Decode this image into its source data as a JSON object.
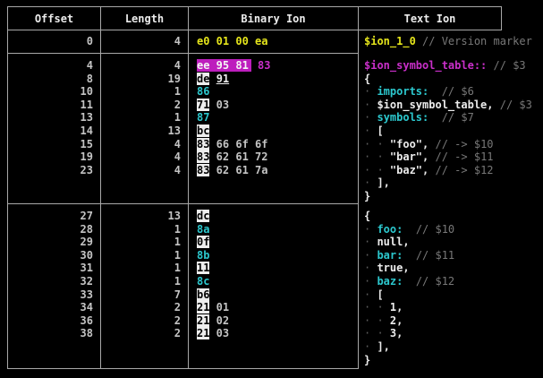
{
  "columns": [
    "Offset",
    "Length",
    "Binary Ion",
    "Text Ion"
  ],
  "colors": {
    "background": "#000000",
    "border": "#a8a8a8",
    "white": "#ececec",
    "number_gray": "#c4c4c4",
    "yellow": "#e5e51b",
    "magenta": "#c92fc9",
    "magenta_highlight_bg": "#bd1ebd",
    "cyan": "#2cc8ce",
    "comment_gray": "#787878",
    "indent_dot_gray": "#5e5e5e",
    "inverted_byte_bg": "#ededed"
  },
  "sections": [
    {
      "rows": [
        {
          "offset": "0",
          "length": "4",
          "binary": [
            {
              "t": "e0 01 00 ea",
              "c": "yellow"
            }
          ],
          "text": [
            {
              "t": "$ion_1_0",
              "c": "yellow"
            },
            {
              "t": " ",
              "c": "plain"
            },
            {
              "t": "// Version marker",
              "c": "comment"
            }
          ]
        }
      ]
    },
    {
      "rows": [
        {
          "offset": "4",
          "length": "4",
          "binary": [
            {
              "t": "ee 95 81",
              "c": "magentaBg"
            },
            {
              "t": " ",
              "c": "plain"
            },
            {
              "t": "83",
              "c": "magenta"
            }
          ],
          "text": [
            {
              "t": "$ion_symbol_table::",
              "c": "magenta"
            },
            {
              "t": " ",
              "c": "plain"
            },
            {
              "t": "// $3",
              "c": "comment"
            }
          ]
        },
        {
          "offset": "8",
          "length": "19",
          "binary": [
            {
              "t": "de",
              "c": "invert"
            },
            {
              "t": " ",
              "c": "plain"
            },
            {
              "t": "91",
              "c": "whiteU"
            }
          ],
          "text": [
            {
              "t": "{",
              "c": "white"
            }
          ]
        },
        {
          "offset": "10",
          "length": "1",
          "binary": [
            {
              "t": "86",
              "c": "cyan"
            }
          ],
          "text": [
            {
              "t": "· ",
              "c": "dot"
            },
            {
              "t": "imports:",
              "c": "cyan"
            },
            {
              "t": "  ",
              "c": "plain"
            },
            {
              "t": "// $6",
              "c": "comment"
            }
          ]
        },
        {
          "offset": "11",
          "length": "2",
          "binary": [
            {
              "t": "71",
              "c": "invert"
            },
            {
              "t": " 03",
              "c": "gray"
            }
          ],
          "text": [
            {
              "t": "· ",
              "c": "dot"
            },
            {
              "t": "$ion_symbol_table,",
              "c": "white"
            },
            {
              "t": " ",
              "c": "plain"
            },
            {
              "t": "// $3",
              "c": "comment"
            }
          ]
        },
        {
          "offset": "13",
          "length": "1",
          "binary": [
            {
              "t": "87",
              "c": "cyan"
            }
          ],
          "text": [
            {
              "t": "· ",
              "c": "dot"
            },
            {
              "t": "symbols:",
              "c": "cyan"
            },
            {
              "t": "  ",
              "c": "plain"
            },
            {
              "t": "// $7",
              "c": "comment"
            }
          ]
        },
        {
          "offset": "14",
          "length": "13",
          "binary": [
            {
              "t": "bc",
              "c": "invert"
            }
          ],
          "text": [
            {
              "t": "· ",
              "c": "dot"
            },
            {
              "t": "[",
              "c": "white"
            }
          ]
        },
        {
          "offset": "15",
          "length": "4",
          "binary": [
            {
              "t": "83",
              "c": "invert"
            },
            {
              "t": " 66 6f 6f",
              "c": "gray"
            }
          ],
          "text": [
            {
              "t": "· · ",
              "c": "dot"
            },
            {
              "t": "\"foo\",",
              "c": "white"
            },
            {
              "t": " ",
              "c": "plain"
            },
            {
              "t": "// -> $10",
              "c": "comment"
            }
          ]
        },
        {
          "offset": "19",
          "length": "4",
          "binary": [
            {
              "t": "83",
              "c": "invert"
            },
            {
              "t": " 62 61 72",
              "c": "gray"
            }
          ],
          "text": [
            {
              "t": "· · ",
              "c": "dot"
            },
            {
              "t": "\"bar\",",
              "c": "white"
            },
            {
              "t": " ",
              "c": "plain"
            },
            {
              "t": "// -> $11",
              "c": "comment"
            }
          ]
        },
        {
          "offset": "23",
          "length": "4",
          "binary": [
            {
              "t": "83",
              "c": "invert"
            },
            {
              "t": " 62 61 7a",
              "c": "gray"
            }
          ],
          "text": [
            {
              "t": "· · ",
              "c": "dot"
            },
            {
              "t": "\"baz\",",
              "c": "white"
            },
            {
              "t": " ",
              "c": "plain"
            },
            {
              "t": "// -> $12",
              "c": "comment"
            }
          ]
        },
        {
          "text": [
            {
              "t": "· ",
              "c": "dot"
            },
            {
              "t": "],",
              "c": "white"
            }
          ]
        },
        {
          "text": [
            {
              "t": "}",
              "c": "white"
            }
          ]
        }
      ]
    },
    {
      "rows": [
        {
          "offset": "27",
          "length": "13",
          "binary": [
            {
              "t": "dc",
              "c": "invert"
            }
          ],
          "text": [
            {
              "t": "{",
              "c": "white"
            }
          ]
        },
        {
          "offset": "28",
          "length": "1",
          "binary": [
            {
              "t": "8a",
              "c": "cyan"
            }
          ],
          "text": [
            {
              "t": "· ",
              "c": "dot"
            },
            {
              "t": "foo:",
              "c": "cyan"
            },
            {
              "t": "  ",
              "c": "plain"
            },
            {
              "t": "// $10",
              "c": "comment"
            }
          ]
        },
        {
          "offset": "29",
          "length": "1",
          "binary": [
            {
              "t": "0f",
              "c": "invert"
            }
          ],
          "text": [
            {
              "t": "· ",
              "c": "dot"
            },
            {
              "t": "null,",
              "c": "white"
            }
          ]
        },
        {
          "offset": "30",
          "length": "1",
          "binary": [
            {
              "t": "8b",
              "c": "cyan"
            }
          ],
          "text": [
            {
              "t": "· ",
              "c": "dot"
            },
            {
              "t": "bar:",
              "c": "cyan"
            },
            {
              "t": "  ",
              "c": "plain"
            },
            {
              "t": "// $11",
              "c": "comment"
            }
          ]
        },
        {
          "offset": "31",
          "length": "1",
          "binary": [
            {
              "t": "11",
              "c": "invert"
            }
          ],
          "text": [
            {
              "t": "· ",
              "c": "dot"
            },
            {
              "t": "true,",
              "c": "white"
            }
          ]
        },
        {
          "offset": "32",
          "length": "1",
          "binary": [
            {
              "t": "8c",
              "c": "cyan"
            }
          ],
          "text": [
            {
              "t": "· ",
              "c": "dot"
            },
            {
              "t": "baz:",
              "c": "cyan"
            },
            {
              "t": "  ",
              "c": "plain"
            },
            {
              "t": "// $12",
              "c": "comment"
            }
          ]
        },
        {
          "offset": "33",
          "length": "7",
          "binary": [
            {
              "t": "b6",
              "c": "invert"
            }
          ],
          "text": [
            {
              "t": "· ",
              "c": "dot"
            },
            {
              "t": "[",
              "c": "white"
            }
          ]
        },
        {
          "offset": "34",
          "length": "2",
          "binary": [
            {
              "t": "21",
              "c": "invert"
            },
            {
              "t": " 01",
              "c": "gray"
            }
          ],
          "text": [
            {
              "t": "· · ",
              "c": "dot"
            },
            {
              "t": "1,",
              "c": "white"
            }
          ]
        },
        {
          "offset": "36",
          "length": "2",
          "binary": [
            {
              "t": "21",
              "c": "invert"
            },
            {
              "t": " 02",
              "c": "gray"
            }
          ],
          "text": [
            {
              "t": "· · ",
              "c": "dot"
            },
            {
              "t": "2,",
              "c": "white"
            }
          ]
        },
        {
          "offset": "38",
          "length": "2",
          "binary": [
            {
              "t": "21",
              "c": "invert"
            },
            {
              "t": " 03",
              "c": "gray"
            }
          ],
          "text": [
            {
              "t": "· · ",
              "c": "dot"
            },
            {
              "t": "3,",
              "c": "white"
            }
          ]
        },
        {
          "text": [
            {
              "t": "· ",
              "c": "dot"
            },
            {
              "t": "],",
              "c": "white"
            }
          ]
        },
        {
          "text": [
            {
              "t": "}",
              "c": "white"
            }
          ]
        }
      ]
    }
  ]
}
